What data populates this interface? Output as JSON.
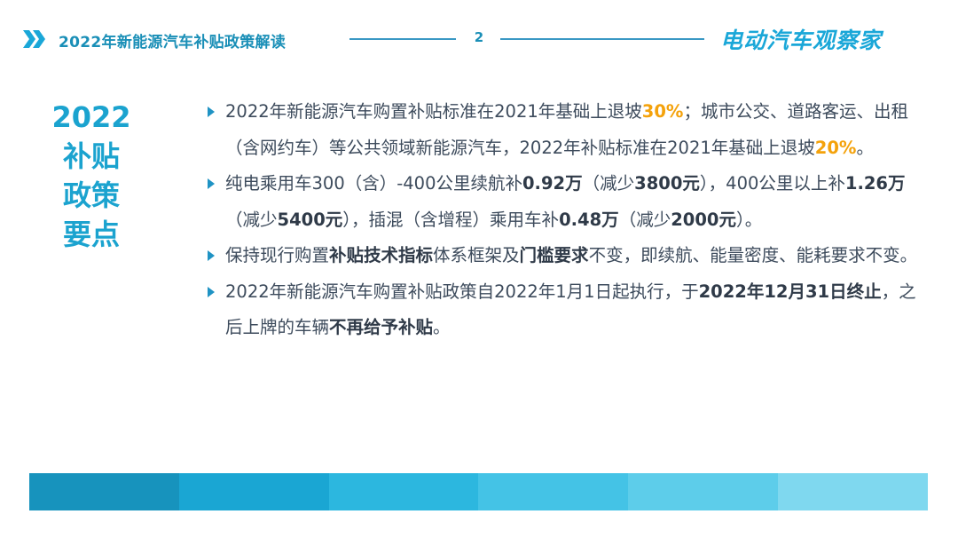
{
  "header": {
    "title": "2022年新能源汽车补贴政策解读",
    "page_number": "2",
    "brand": "电动汽车观察家",
    "icon": "double-chevron-right-icon"
  },
  "side_title": {
    "line1": "2022",
    "line2": "补贴",
    "line3": "政策",
    "line4": "要点"
  },
  "bullets": [
    {
      "p1": "2022年新能源汽车购置补贴标准在2021年基础上退坡",
      "h1": "30%",
      "p2": "；城市公交、道路客运、出租（含网约车）等公共领域新能源汽车，2022年补贴标准在2021年基础上退坡",
      "h2": "20%",
      "p3": "。"
    },
    {
      "p1": "纯电乘用车300（含）-400公里续航补",
      "b1": "0.92万",
      "p2": "（减少",
      "b2": "3800元",
      "p3": "），400公里以上补",
      "b3": "1.26万",
      "p4": "（减少",
      "b4": "5400元",
      "p5": "），插混（含增程）乘用车补",
      "b5": "0.48万",
      "p6": "（减少",
      "b6": "2000元",
      "p7": "）。"
    },
    {
      "p1": "保持现行购置",
      "b1": "补贴技术指标",
      "p2": "体系框架及",
      "b2": "门槛要求",
      "p3": "不变，即续航、能量密度、能耗要求不变。"
    },
    {
      "p1": "2022年新能源汽车购置补贴政策自2022年1月1日起执行，于",
      "b1": "2022年12月31日终止",
      "p2": "，之后上牌的车辆",
      "b2": "不再给予补贴",
      "p3": "。"
    }
  ],
  "colors": {
    "accent": "#1ba3cf",
    "highlight": "#f4a20b",
    "footer_segments": [
      "#1793bd",
      "#1aa6d3",
      "#2cb7df",
      "#44c3e6",
      "#5dcdea",
      "#7fd8ef"
    ]
  }
}
